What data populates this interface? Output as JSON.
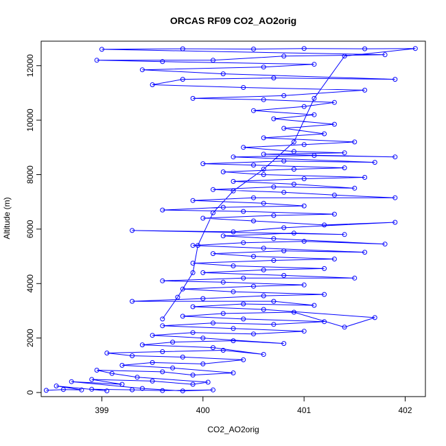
{
  "chart_data": {
    "type": "scatter",
    "title": "ORCAS RF09 CO2_AO2orig",
    "xlabel": "CO2_AO2orig",
    "ylabel": "Altitude (m)",
    "xlim": [
      398.4,
      402.2
    ],
    "ylim": [
      -150,
      12900
    ],
    "xticks": [
      399,
      400,
      401,
      402
    ],
    "yticks": [
      0,
      2000,
      4000,
      6000,
      8000,
      10000,
      12000
    ],
    "grid": false,
    "legend": "none",
    "connected": true,
    "marker": "open-circle",
    "series": [
      {
        "color": "#0000ff",
        "points": [
          [
            398.45,
            80
          ],
          [
            398.62,
            110
          ],
          [
            398.8,
            95
          ],
          [
            398.55,
            240
          ],
          [
            399.05,
            60
          ],
          [
            398.9,
            120
          ],
          [
            399.3,
            100
          ],
          [
            399.6,
            70
          ],
          [
            400.1,
            95
          ],
          [
            399.8,
            60
          ],
          [
            399.4,
            150
          ],
          [
            398.7,
            400
          ],
          [
            399.2,
            300
          ],
          [
            398.9,
            480
          ],
          [
            399.5,
            420
          ],
          [
            399.9,
            300
          ],
          [
            400.05,
            380
          ],
          [
            399.35,
            560
          ],
          [
            399.1,
            700
          ],
          [
            398.95,
            820
          ],
          [
            399.6,
            760
          ],
          [
            399.9,
            640
          ],
          [
            400.3,
            720
          ],
          [
            399.7,
            900
          ],
          [
            399.2,
            1000
          ],
          [
            399.5,
            1100
          ],
          [
            400.0,
            1050
          ],
          [
            400.4,
            1200
          ],
          [
            399.8,
            1300
          ],
          [
            399.3,
            1350
          ],
          [
            399.05,
            1450
          ],
          [
            399.6,
            1500
          ],
          [
            400.2,
            1550
          ],
          [
            400.6,
            1400
          ],
          [
            400.1,
            1650
          ],
          [
            399.4,
            1750
          ],
          [
            399.7,
            1850
          ],
          [
            400.3,
            1900
          ],
          [
            400.8,
            1800
          ],
          [
            400.0,
            2000
          ],
          [
            399.5,
            2100
          ],
          [
            399.9,
            2200
          ],
          [
            400.5,
            2150
          ],
          [
            401.0,
            2250
          ],
          [
            400.3,
            2350
          ],
          [
            399.6,
            2450
          ],
          [
            400.1,
            2550
          ],
          [
            400.7,
            2500
          ],
          [
            401.2,
            2600
          ],
          [
            400.4,
            2700
          ],
          [
            399.8,
            2800
          ],
          [
            400.2,
            2900
          ],
          [
            400.9,
            2950
          ],
          [
            401.4,
            2400
          ],
          [
            401.7,
            2750
          ],
          [
            400.6,
            3050
          ],
          [
            399.9,
            3150
          ],
          [
            400.4,
            3250
          ],
          [
            401.1,
            3200
          ],
          [
            400.7,
            3350
          ],
          [
            399.3,
            3350
          ],
          [
            400.0,
            3450
          ],
          [
            400.6,
            3550
          ],
          [
            401.2,
            3600
          ],
          [
            400.3,
            3700
          ],
          [
            399.8,
            3800
          ],
          [
            400.5,
            3900
          ],
          [
            401.0,
            3950
          ],
          [
            400.2,
            4050
          ],
          [
            399.6,
            4100
          ],
          [
            400.4,
            4200
          ],
          [
            401.5,
            4200
          ],
          [
            400.8,
            4300
          ],
          [
            400.0,
            4400
          ],
          [
            400.6,
            4500
          ],
          [
            401.2,
            4550
          ],
          [
            400.3,
            4650
          ],
          [
            399.9,
            4750
          ],
          [
            400.7,
            4850
          ],
          [
            401.3,
            4900
          ],
          [
            400.5,
            5000
          ],
          [
            400.1,
            5100
          ],
          [
            400.8,
            5200
          ],
          [
            401.6,
            5150
          ],
          [
            400.6,
            5300
          ],
          [
            399.9,
            5400
          ],
          [
            400.4,
            5500
          ],
          [
            401.0,
            5550
          ],
          [
            401.8,
            5450
          ],
          [
            400.7,
            5650
          ],
          [
            400.2,
            5750
          ],
          [
            400.9,
            5850
          ],
          [
            401.4,
            5800
          ],
          [
            399.3,
            5950
          ],
          [
            400.3,
            5900
          ],
          [
            400.8,
            6050
          ],
          [
            401.9,
            6250
          ],
          [
            401.2,
            6150
          ],
          [
            400.5,
            6300
          ],
          [
            400.0,
            6400
          ],
          [
            400.7,
            6500
          ],
          [
            401.3,
            6550
          ],
          [
            400.4,
            6650
          ],
          [
            399.6,
            6700
          ],
          [
            400.2,
            6800
          ],
          [
            401.0,
            6850
          ],
          [
            400.6,
            6950
          ],
          [
            399.9,
            7050
          ],
          [
            400.5,
            7150
          ],
          [
            401.9,
            7150
          ],
          [
            401.3,
            7250
          ],
          [
            400.8,
            7350
          ],
          [
            400.1,
            7450
          ],
          [
            400.7,
            7550
          ],
          [
            401.5,
            7500
          ],
          [
            400.9,
            7650
          ],
          [
            400.3,
            7750
          ],
          [
            401.0,
            7850
          ],
          [
            401.6,
            7900
          ],
          [
            400.6,
            8000
          ],
          [
            400.2,
            8100
          ],
          [
            400.9,
            8200
          ],
          [
            401.4,
            8250
          ],
          [
            400.5,
            8350
          ],
          [
            400.0,
            8400
          ],
          [
            400.8,
            8500
          ],
          [
            401.7,
            8450
          ],
          [
            400.3,
            8650
          ],
          [
            401.1,
            8700
          ],
          [
            401.9,
            8650
          ],
          [
            400.6,
            8750
          ],
          [
            401.4,
            8800
          ],
          [
            400.9,
            8850
          ],
          [
            400.4,
            9000
          ],
          [
            401.0,
            9100
          ],
          [
            401.5,
            9200
          ],
          [
            400.6,
            9350
          ],
          [
            401.2,
            9500
          ],
          [
            400.8,
            9700
          ],
          [
            401.3,
            9850
          ],
          [
            400.7,
            10050
          ],
          [
            401.1,
            10200
          ],
          [
            400.5,
            10350
          ],
          [
            401.0,
            10500
          ],
          [
            401.3,
            10650
          ],
          [
            400.6,
            10750
          ],
          [
            399.9,
            10800
          ],
          [
            400.8,
            10900
          ],
          [
            401.6,
            11100
          ],
          [
            400.4,
            11200
          ],
          [
            399.5,
            11300
          ],
          [
            399.8,
            11500
          ],
          [
            400.7,
            11550
          ],
          [
            401.9,
            11500
          ],
          [
            400.2,
            11700
          ],
          [
            399.4,
            11850
          ],
          [
            400.6,
            11950
          ],
          [
            401.1,
            12050
          ],
          [
            399.6,
            12150
          ],
          [
            398.95,
            12200
          ],
          [
            400.1,
            12200
          ],
          [
            400.8,
            12350
          ],
          [
            401.8,
            12400
          ],
          [
            399.0,
            12600
          ],
          [
            399.8,
            12620
          ],
          [
            400.5,
            12610
          ],
          [
            401.0,
            12630
          ],
          [
            401.6,
            12620
          ],
          [
            402.1,
            12630
          ],
          [
            401.4,
            12350
          ],
          [
            401.1,
            10800
          ],
          [
            400.9,
            9200
          ],
          [
            400.6,
            8200
          ],
          [
            400.3,
            7400
          ],
          [
            400.1,
            6600
          ],
          [
            399.95,
            5400
          ],
          [
            399.9,
            4400
          ],
          [
            399.75,
            3500
          ],
          [
            399.6,
            2700
          ]
        ]
      }
    ]
  }
}
